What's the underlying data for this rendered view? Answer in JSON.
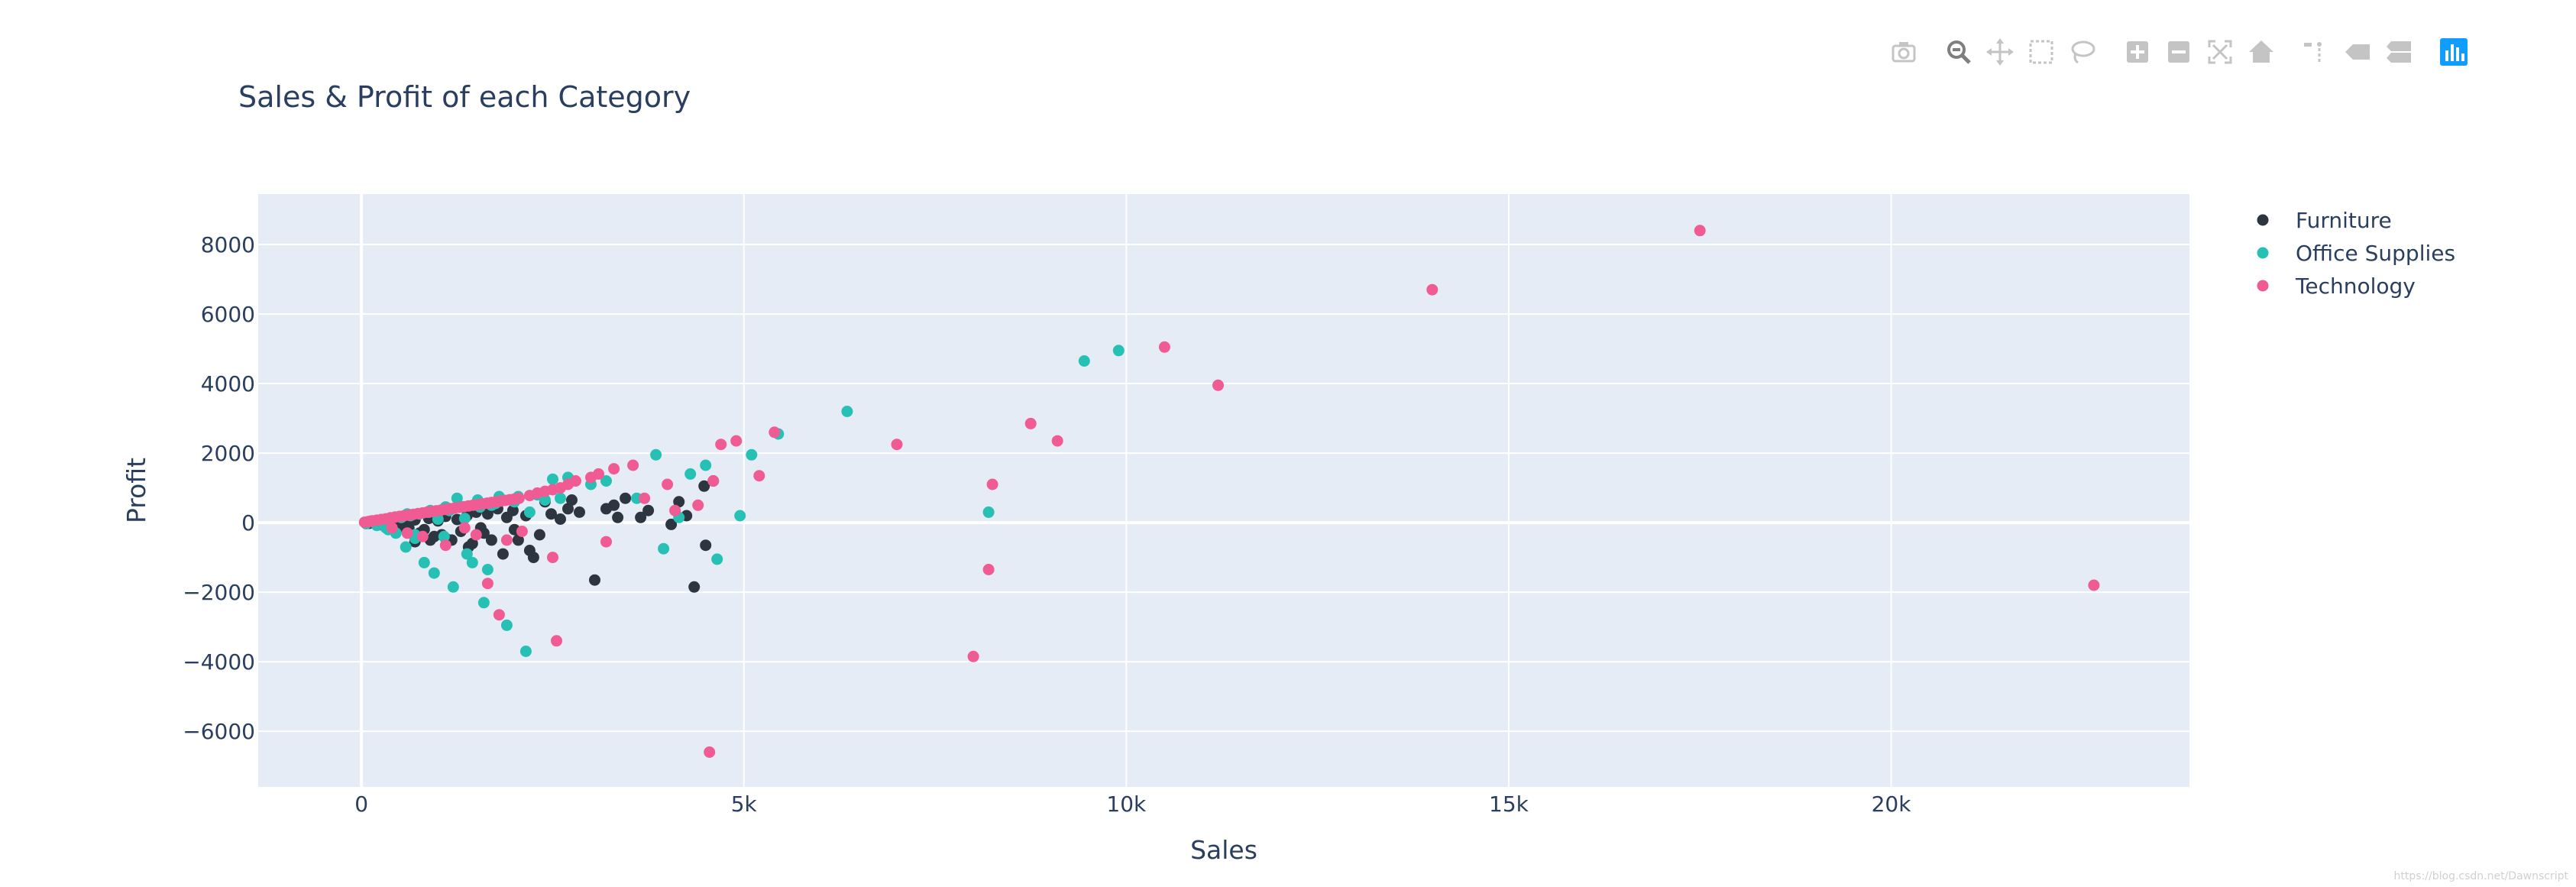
{
  "modebar": {
    "buttons": [
      {
        "name": "camera-icon",
        "title": "Download plot as a png"
      },
      {
        "name": "zoom-icon",
        "title": "Zoom",
        "active": true
      },
      {
        "name": "pan-icon",
        "title": "Pan"
      },
      {
        "name": "box-select-icon",
        "title": "Box Select"
      },
      {
        "name": "lasso-select-icon",
        "title": "Lasso Select"
      },
      {
        "name": "zoom-in-icon",
        "title": "Zoom in"
      },
      {
        "name": "zoom-out-icon",
        "title": "Zoom out"
      },
      {
        "name": "autoscale-icon",
        "title": "Autoscale"
      },
      {
        "name": "reset-axes-icon",
        "title": "Reset axes"
      },
      {
        "name": "spike-lines-icon",
        "title": "Toggle Spike Lines"
      },
      {
        "name": "hover-closest-icon",
        "title": "Show closest data on hover"
      },
      {
        "name": "hover-compare-icon",
        "title": "Compare data on hover"
      },
      {
        "name": "plotly-logo-icon",
        "title": "Produced with Plotly"
      }
    ]
  },
  "watermark": "https://blog.csdn.net/Dawnscript",
  "colors": {
    "plot_bg": "#e5ecf6",
    "text": "#2a3f5f",
    "grid": "#ffffff",
    "modebar_icon": "#c4c4c4",
    "modebar_active": "#7f7f7f",
    "plotly_logo": "#119dff"
  },
  "chart_data": {
    "type": "scatter",
    "title": "Sales & Profit of each Category",
    "xlabel": "Sales",
    "ylabel": "Profit",
    "xlim": [
      -1350,
      23900
    ],
    "ylim": [
      -7600,
      9450
    ],
    "xticks": [
      0,
      5000,
      10000,
      15000,
      20000
    ],
    "xtick_labels": [
      "0",
      "5k",
      "10k",
      "15k",
      "20k"
    ],
    "yticks": [
      -6000,
      -4000,
      -2000,
      0,
      2000,
      4000,
      6000,
      8000
    ],
    "ytick_labels": [
      "−6000",
      "−4000",
      "−2000",
      "0",
      "2000",
      "4000",
      "6000",
      "8000"
    ],
    "grid": true,
    "legend_position": "top-right",
    "series": [
      {
        "name": "Furniture",
        "color": "#2d3640",
        "points": [
          [
            100,
            -20
          ],
          [
            180,
            10
          ],
          [
            250,
            -60
          ],
          [
            300,
            40
          ],
          [
            380,
            -80
          ],
          [
            420,
            60
          ],
          [
            500,
            -120
          ],
          [
            560,
            30
          ],
          [
            620,
            -150
          ],
          [
            700,
            80
          ],
          [
            760,
            -300
          ],
          [
            820,
            -200
          ],
          [
            880,
            120
          ],
          [
            950,
            -400
          ],
          [
            1000,
            50
          ],
          [
            1050,
            -350
          ],
          [
            1100,
            180
          ],
          [
            1180,
            -500
          ],
          [
            1250,
            90
          ],
          [
            1300,
            -250
          ],
          [
            1380,
            200
          ],
          [
            1450,
            -600
          ],
          [
            1500,
            300
          ],
          [
            1560,
            -150
          ],
          [
            1650,
            250
          ],
          [
            1700,
            -500
          ],
          [
            1780,
            400
          ],
          [
            1850,
            -900
          ],
          [
            1900,
            150
          ],
          [
            1980,
            350
          ],
          [
            2050,
            -500
          ],
          [
            2150,
            200
          ],
          [
            2250,
            -1000
          ],
          [
            2330,
            -350
          ],
          [
            2400,
            600
          ],
          [
            2480,
            250
          ],
          [
            2600,
            100
          ],
          [
            2750,
            650
          ],
          [
            2850,
            300
          ],
          [
            3050,
            -1650
          ],
          [
            3200,
            400
          ],
          [
            3350,
            150
          ],
          [
            3450,
            700
          ],
          [
            3650,
            150
          ],
          [
            3750,
            350
          ],
          [
            4050,
            -50
          ],
          [
            4150,
            600
          ],
          [
            4250,
            200
          ],
          [
            4350,
            -1850
          ],
          [
            4480,
            1050
          ],
          [
            4500,
            -650
          ],
          [
            4600,
            1200
          ],
          [
            700,
            -550
          ],
          [
            900,
            -500
          ],
          [
            1100,
            -450
          ],
          [
            1400,
            -700
          ],
          [
            1600,
            -300
          ],
          [
            2000,
            -200
          ],
          [
            2200,
            -800
          ],
          [
            2700,
            400
          ],
          [
            3300,
            500
          ]
        ]
      },
      {
        "name": "Office Supplies",
        "color": "#27c0b5",
        "points": [
          [
            60,
            -30
          ],
          [
            120,
            40
          ],
          [
            200,
            -80
          ],
          [
            260,
            90
          ],
          [
            320,
            -150
          ],
          [
            380,
            120
          ],
          [
            450,
            -300
          ],
          [
            520,
            150
          ],
          [
            580,
            -700
          ],
          [
            640,
            200
          ],
          [
            700,
            -450
          ],
          [
            760,
            250
          ],
          [
            820,
            -1150
          ],
          [
            880,
            300
          ],
          [
            950,
            -1450
          ],
          [
            1000,
            100
          ],
          [
            1080,
            -400
          ],
          [
            1150,
            350
          ],
          [
            1200,
            -1850
          ],
          [
            1300,
            450
          ],
          [
            1380,
            -900
          ],
          [
            1450,
            -1150
          ],
          [
            1520,
            650
          ],
          [
            1600,
            -2300
          ],
          [
            1650,
            -1350
          ],
          [
            1700,
            500
          ],
          [
            1800,
            750
          ],
          [
            1900,
            -2950
          ],
          [
            2000,
            600
          ],
          [
            2150,
            -3700
          ],
          [
            2200,
            300
          ],
          [
            2300,
            800
          ],
          [
            2400,
            650
          ],
          [
            2500,
            1250
          ],
          [
            2600,
            700
          ],
          [
            2700,
            1300
          ],
          [
            3000,
            1100
          ],
          [
            3200,
            1200
          ],
          [
            3600,
            700
          ],
          [
            3850,
            1950
          ],
          [
            3950,
            -750
          ],
          [
            4150,
            150
          ],
          [
            4300,
            1400
          ],
          [
            4500,
            1650
          ],
          [
            4650,
            -1050
          ],
          [
            4950,
            200
          ],
          [
            5100,
            1950
          ],
          [
            5450,
            2550
          ],
          [
            6350,
            3200
          ],
          [
            8200,
            300
          ],
          [
            9450,
            4650
          ],
          [
            9900,
            4950
          ],
          [
            1350,
            120
          ],
          [
            1550,
            450
          ],
          [
            1750,
            550
          ],
          [
            1950,
            650
          ],
          [
            600,
            250
          ],
          [
            900,
            350
          ],
          [
            1100,
            450
          ],
          [
            2050,
            750
          ],
          [
            350,
            -200
          ],
          [
            700,
            -350
          ],
          [
            1250,
            700
          ]
        ]
      },
      {
        "name": "Technology",
        "color": "#ef5b92",
        "points": [
          [
            40,
            10
          ],
          [
            90,
            30
          ],
          [
            140,
            50
          ],
          [
            200,
            70
          ],
          [
            260,
            90
          ],
          [
            320,
            110
          ],
          [
            380,
            140
          ],
          [
            440,
            160
          ],
          [
            500,
            180
          ],
          [
            560,
            200
          ],
          [
            620,
            220
          ],
          [
            680,
            240
          ],
          [
            740,
            260
          ],
          [
            800,
            280
          ],
          [
            860,
            300
          ],
          [
            920,
            320
          ],
          [
            980,
            340
          ],
          [
            1040,
            360
          ],
          [
            1100,
            380
          ],
          [
            1160,
            400
          ],
          [
            1220,
            420
          ],
          [
            1280,
            440
          ],
          [
            1340,
            460
          ],
          [
            1400,
            480
          ],
          [
            1460,
            500
          ],
          [
            1520,
            520
          ],
          [
            1580,
            540
          ],
          [
            1640,
            560
          ],
          [
            1700,
            580
          ],
          [
            1760,
            600
          ],
          [
            1820,
            620
          ],
          [
            1880,
            640
          ],
          [
            1940,
            660
          ],
          [
            2000,
            680
          ],
          [
            2060,
            700
          ],
          [
            2200,
            780
          ],
          [
            2300,
            850
          ],
          [
            2400,
            900
          ],
          [
            2500,
            950
          ],
          [
            2600,
            1000
          ],
          [
            2700,
            1100
          ],
          [
            2800,
            1200
          ],
          [
            3000,
            1300
          ],
          [
            3100,
            1400
          ],
          [
            3300,
            1550
          ],
          [
            3550,
            1650
          ],
          [
            3700,
            700
          ],
          [
            4000,
            1100
          ],
          [
            4100,
            350
          ],
          [
            4400,
            500
          ],
          [
            4600,
            1200
          ],
          [
            4700,
            2250
          ],
          [
            4900,
            2350
          ],
          [
            5200,
            1350
          ],
          [
            5400,
            2600
          ],
          [
            7000,
            2250
          ],
          [
            8250,
            1100
          ],
          [
            8750,
            2850
          ],
          [
            9100,
            2350
          ],
          [
            10500,
            5050
          ],
          [
            11200,
            3950
          ],
          [
            14000,
            6700
          ],
          [
            17500,
            8400
          ],
          [
            22650,
            -1800
          ],
          [
            8000,
            -3850
          ],
          [
            8200,
            -1350
          ],
          [
            4550,
            -6600
          ],
          [
            2550,
            -3400
          ],
          [
            1800,
            -2650
          ],
          [
            1650,
            -1750
          ],
          [
            2500,
            -1000
          ],
          [
            3200,
            -550
          ],
          [
            2100,
            -250
          ],
          [
            1500,
            -350
          ],
          [
            1100,
            -650
          ],
          [
            800,
            -400
          ],
          [
            600,
            -300
          ],
          [
            400,
            -150
          ],
          [
            1350,
            -150
          ],
          [
            1900,
            -500
          ]
        ]
      }
    ]
  }
}
